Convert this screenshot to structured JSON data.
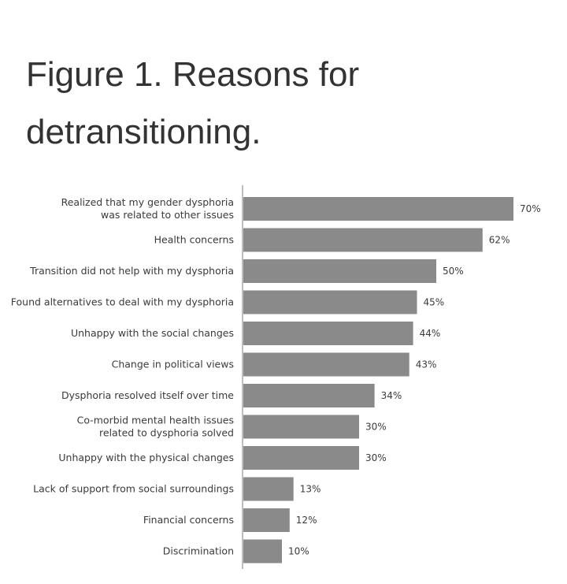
{
  "title": "Figure 1. Reasons for detransitioning.",
  "colors": {
    "bar": "#8a8a8a",
    "axis": "#a8a8a8",
    "text": "#3a3a3a"
  },
  "chart_data": {
    "type": "bar",
    "orientation": "horizontal",
    "title": "Figure 1. Reasons for detransitioning.",
    "categories": [
      [
        "Realized that my gender dysphoria",
        "was related to other issues"
      ],
      [
        "Health concerns"
      ],
      [
        "Transition did not help with my dysphoria"
      ],
      [
        "Found alternatives to deal with my dysphoria"
      ],
      [
        "Unhappy with the social changes"
      ],
      [
        "Change in political views"
      ],
      [
        "Dysphoria resolved itself over time"
      ],
      [
        "Co-morbid mental health issues",
        "related to dysphoria solved"
      ],
      [
        "Unhappy with the physical changes"
      ],
      [
        "Lack of support from social surroundings"
      ],
      [
        "Financial concerns"
      ],
      [
        "Discrimination"
      ]
    ],
    "values": [
      70,
      62,
      50,
      45,
      44,
      43,
      34,
      30,
      30,
      13,
      12,
      10
    ],
    "value_labels": [
      "70%",
      "62%",
      "50%",
      "45%",
      "44%",
      "43%",
      "34%",
      "30%",
      "30%",
      "13%",
      "12%",
      "10%"
    ],
    "xlim": [
      0,
      100
    ],
    "grid": false,
    "legend": "none"
  }
}
